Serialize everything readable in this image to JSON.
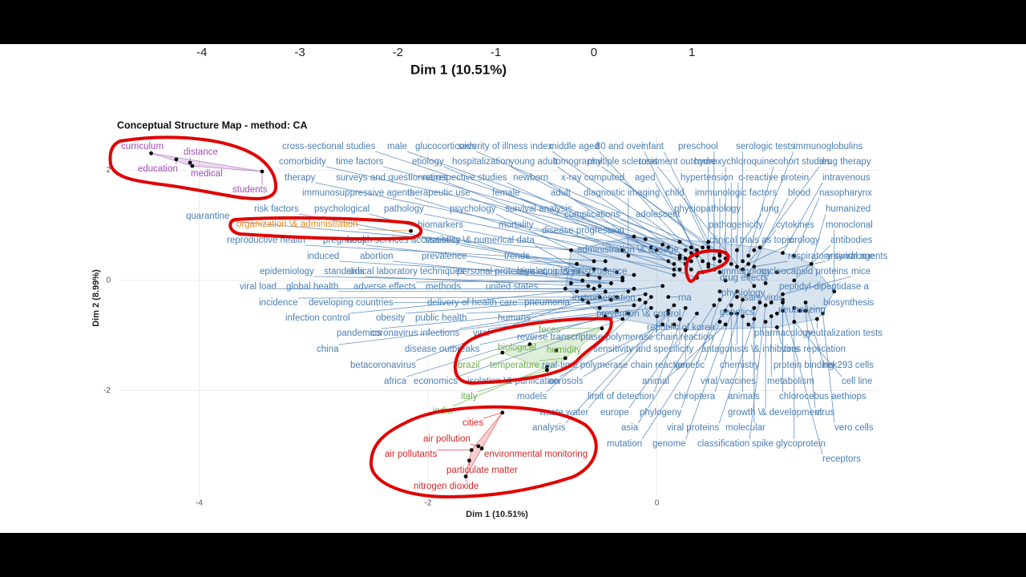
{
  "chart_data": [
    {
      "type": "axis",
      "x_label": "Dim 1 (10.51%)",
      "xlim": [
        -6.06,
        4.41
      ],
      "xticks": [
        -4,
        -3,
        -2,
        -1,
        0,
        1
      ]
    },
    {
      "type": "scatter",
      "title": "Conceptual Structure Map - method: CA",
      "x_label": "Dim 1 (10.51%)",
      "y_label": "Dim 2 (8.99%)",
      "xlim": [
        -4.69,
        1.93
      ],
      "ylim": [
        -3.93,
        2.62
      ],
      "xticks": [
        -4,
        -2,
        0
      ],
      "yticks": [
        -2,
        0,
        2
      ],
      "grid": true,
      "series": [
        {
          "color": "#a04cb4",
          "labels": [
            "curriculum",
            "education",
            "distance",
            "medical",
            "students"
          ],
          "x": [
            -4.42,
            -4.2,
            -4.08,
            -4.06,
            -3.45
          ],
          "y": [
            2.31,
            2.2,
            2.14,
            2.08,
            1.98
          ]
        },
        {
          "color": "#e8891c",
          "labels": [
            "organization \\& administration"
          ],
          "x": [
            -2.15
          ],
          "y": [
            0.9
          ]
        },
        {
          "color": "#4a7fb5",
          "labels": [
            "cross-sectional studies",
            "male",
            "glucocorticoids",
            "severity of illness index",
            "middle aged",
            "80 and over",
            "infant",
            "preschool",
            "serologic tests",
            "immunoglobulins",
            "comorbidity",
            "time factors",
            "etiology",
            "hospitalization",
            "young adult",
            "tomography",
            "multiple sclerosis",
            "treatment outcome",
            "hydroxychloroquine",
            "cohort studies",
            "drug therapy",
            "therapy",
            "surveys and questionnaires",
            "retrospective studies",
            "newborn",
            "x-ray computed",
            "aged",
            "hypertension",
            "c-reactive protein",
            "intravenous",
            "immunosuppressive agents",
            "therapeutic use",
            "female",
            "adult",
            "diagnostic imaging",
            "child",
            "immunologic factors",
            "blood",
            "nasopharynx",
            "risk factors",
            "psychological",
            "pathology",
            "psychology",
            "survival analysis",
            "physiopathology",
            "lung",
            "humanized",
            "quarantine",
            "complications",
            "adolescent",
            "biomarkers",
            "mortality",
            "pathogenicity",
            "cytokines",
            "monoclonal",
            "disease progression",
            "reproductive health",
            "pregnancy",
            "health services accessibility",
            "statistics \\& numerical data",
            "clinical trials as topic",
            "virology",
            "antibodies",
            "administration \\& dosage",
            "induced",
            "abortion",
            "prevalence",
            "trends",
            "respiratory syndrome",
            "antiviral agents",
            "epidemiology",
            "standards",
            "clinical laboratory techniques",
            "personal protective equipment",
            "legislation \\& jurisprudence",
            "immunology",
            "nucleocapsid proteins",
            "mice",
            "drug effects",
            "viral load",
            "global health",
            "adverse effects",
            "methods",
            "united states",
            "peptidyl-dipeptidase a",
            "physiology",
            "sars virus",
            "instrumentation",
            "rna",
            "incidence",
            "developing countries",
            "delivery of health care",
            "pneumonia",
            "biosynthesis",
            "neutralizing",
            "genetics",
            "prevention \\& control",
            "infection control",
            "obesity",
            "public health",
            "humans",
            "republic of korea",
            "pandemics",
            "coronavirus infections",
            "viral",
            "pharmacology",
            "neutralization tests",
            "reverse transcriptase polymerase chain reaction",
            "china",
            "disease outbreaks",
            "sensitivity and specificity",
            "antagonists \\& inhibitors",
            "virus replication",
            "betacoronavirus",
            "real-time polymerase chain reaction",
            "genetic",
            "chemistry",
            "protein binding",
            "hek293 cells",
            "africa",
            "economics",
            "isolation \\& purification",
            "aerosols",
            "animal",
            "viral vaccines",
            "metabolism",
            "cell line",
            "models",
            "limit of detection",
            "chiroptera",
            "animals",
            "chlorocebus aethiops",
            "waste water",
            "europe",
            "phylogeny",
            "growth \\& development",
            "virus",
            "analysis",
            "asia",
            "viral proteins",
            "molecular",
            "vero cells",
            "mutation",
            "genome",
            "classification",
            "spike glycoprotein",
            "receptors"
          ],
          "x": [
            -0.2,
            0.25,
            0.4,
            0.2,
            0.3,
            0.35,
            0.45,
            0.5,
            0.75,
            0.85,
            -0.1,
            0.05,
            0.15,
            0.1,
            0.3,
            0.55,
            0.85,
            0.45,
            0.6,
            0.8,
            0.9,
            0.2,
            -0.3,
            0.25,
            0.2,
            0.55,
            0.4,
            0.65,
            0.7,
            1.1,
            0.15,
            0.35,
            0.0,
            0.35,
            -0.25,
            0.45,
            0.55,
            0.8,
            1.2,
            -0.45,
            -0.5,
            0.1,
            -0.55,
            0.2,
            0.5,
            0.7,
            1.35,
            -0.75,
            0.3,
            0.4,
            0.15,
            -0.05,
            0.6,
            0.75,
            1.55,
            0.25,
            -0.45,
            -0.55,
            -0.35,
            -0.6,
            0.55,
            0.8,
            1.2,
            0.3,
            -0.3,
            -0.4,
            -0.65,
            -0.7,
            0.85,
            1.05,
            -0.4,
            -0.6,
            -0.2,
            -0.75,
            -0.5,
            0.45,
            0.95,
            1.1,
            0.6,
            -0.2,
            -0.45,
            -0.3,
            -0.7,
            -0.8,
            1.0,
            0.55,
            0.7,
            -0.25,
            0.1,
            -0.5,
            -0.6,
            -0.4,
            0.05,
            1.25,
            1.05,
            0.6,
            -0.1,
            -0.55,
            -0.35,
            -0.2,
            -0.1,
            0.1,
            -0.5,
            -0.15,
            -0.05,
            0.8,
            1.4,
            0.0,
            -0.35,
            -0.25,
            0.2,
            0.7,
            1.05,
            -0.65,
            0.25,
            0.55,
            0.65,
            1.1,
            1.3,
            -0.45,
            -0.3,
            0.05,
            0.15,
            0.6,
            0.85,
            1.0,
            1.2,
            -0.05,
            0.25,
            0.75,
            0.75,
            1.1,
            0.1,
            0.35,
            0.55,
            0.95,
            1.3,
            0.15,
            0.5,
            0.9,
            0.85,
            1.45,
            0.7,
            0.65,
            0.95,
            1.2,
            1.1
          ],
          "y": [
            0.8,
            0.55,
            0.6,
            0.7,
            0.5,
            0.45,
            0.7,
            0.4,
            0.35,
            0.55,
            0.75,
            0.65,
            0.3,
            0.6,
            0.35,
            0.5,
            -0.1,
            0.25,
            0.5,
            0.45,
            0.6,
            0.4,
            0.55,
            0.3,
            0.2,
            0.45,
            0.35,
            0.3,
            0.25,
            0.5,
            0.1,
            0.05,
            0.55,
            0.55,
            0.45,
            0.6,
            0.15,
            0.1,
            0.45,
            0.2,
            0.05,
            0.35,
            0.35,
            0.45,
            0.2,
            0.55,
            0.3,
            0.55,
            0.6,
            0.15,
            0.2,
            0.6,
            0.4,
            0.2,
            -0.2,
            0.4,
            0.35,
            0.2,
            0.15,
            0.1,
            0.35,
            0.3,
            0.0,
            0.2,
            0.05,
            -0.05,
            0.0,
            0.3,
            0.25,
            0.15,
            -0.05,
            -0.1,
            0.1,
            -0.05,
            -0.1,
            0.3,
            -0.05,
            -0.25,
            0.0,
            -0.15,
            -0.2,
            0.0,
            -0.2,
            -0.15,
            -0.4,
            -0.2,
            -0.3,
            -0.2,
            -0.3,
            -0.3,
            -0.4,
            -0.35,
            -0.1,
            -0.55,
            -0.6,
            -0.55,
            -0.4,
            -0.15,
            -0.3,
            -0.45,
            -0.25,
            -0.55,
            -0.5,
            -0.35,
            -0.5,
            -0.8,
            -0.7,
            -0.65,
            -0.55,
            -0.6,
            -0.7,
            -0.6,
            -0.85,
            -0.35,
            -0.9,
            -0.75,
            -0.45,
            -0.35,
            -0.4,
            -0.65,
            -0.7,
            -0.8,
            -0.8,
            -0.8,
            -0.5,
            -0.65,
            -0.75,
            -0.3,
            -0.5,
            -0.35,
            -0.65,
            -0.55,
            -0.6,
            -0.6,
            -0.35,
            -0.75,
            -0.55,
            -0.45,
            -0.45,
            -0.4,
            -0.7,
            -0.6,
            -0.2,
            -0.6,
            -0.45,
            -0.5,
            -0.4
          ]
        },
        {
          "color": "#6ab04c",
          "labels": [
            "feces",
            "biological",
            "humidity",
            "brazil",
            "temperature",
            "italy",
            "india"
          ],
          "x": [
            -0.48,
            -1.11,
            -0.88,
            -1.35,
            -0.8,
            -0.96,
            -0.96
          ],
          "y": [
            -0.87,
            -1.16,
            -1.27,
            -1.31,
            -1.41,
            -1.63,
            -1.57
          ]
        },
        {
          "color": "#d62728",
          "labels": [
            "cities",
            "air pollution",
            "air pollutants",
            "environmental monitoring",
            "particulate matter",
            "nitrogen dioxide"
          ],
          "x": [
            -1.35,
            -1.56,
            -1.62,
            -1.53,
            -1.64,
            -1.67
          ],
          "y": [
            -2.4,
            -3.01,
            -3.08,
            -3.05,
            -3.27,
            -3.56
          ]
        }
      ]
    }
  ]
}
